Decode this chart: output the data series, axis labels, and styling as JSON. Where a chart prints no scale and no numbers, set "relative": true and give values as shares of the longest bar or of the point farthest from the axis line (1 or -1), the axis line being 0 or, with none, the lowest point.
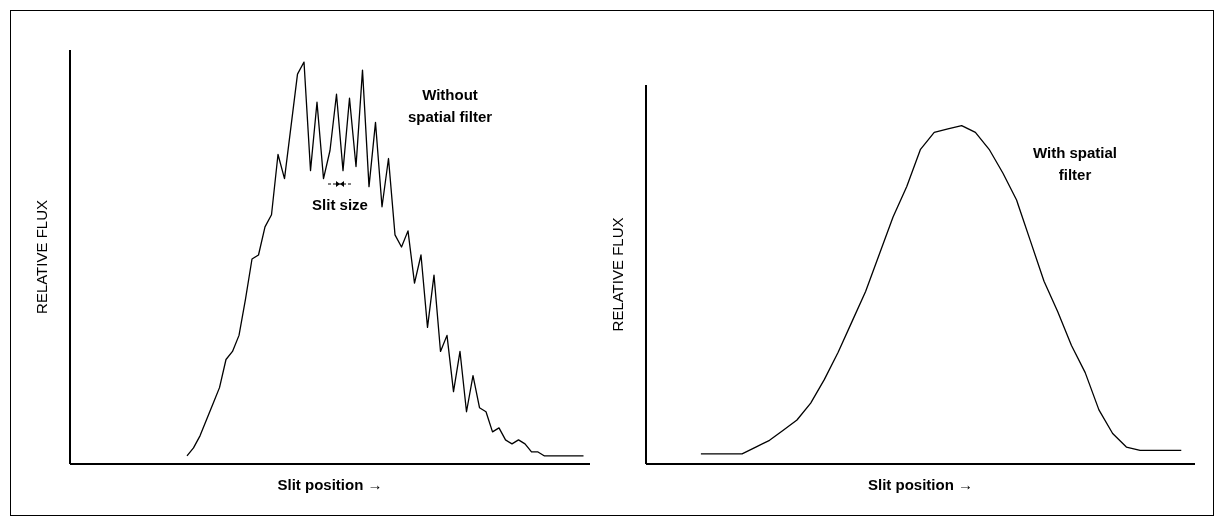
{
  "chart_data": [
    {
      "type": "line",
      "relative": true,
      "ylabel": "RELATIVE FLUX",
      "xlabel": "Slit position  →",
      "categories": [
        null,
        null,
        null,
        null,
        null,
        null,
        null,
        null,
        null,
        null,
        null,
        null,
        null,
        null,
        null,
        null,
        null,
        null,
        null,
        null,
        null,
        null,
        null,
        null,
        null,
        null,
        null,
        null,
        null,
        null,
        null,
        null,
        null,
        null,
        null,
        null,
        null,
        null,
        null,
        null,
        null,
        null,
        null,
        null,
        null,
        null,
        null,
        null,
        null,
        null,
        null,
        null,
        null,
        null,
        null,
        null,
        null,
        null,
        null,
        null,
        null,
        null,
        null,
        null,
        null,
        null,
        null,
        null,
        null,
        null,
        null,
        null,
        null,
        null,
        null,
        null,
        null,
        null,
        null,
        null,
        null
      ],
      "series": [
        {
          "color": "#000000",
          "values": [
            null,
            null,
            null,
            null,
            null,
            null,
            null,
            null,
            null,
            null,
            null,
            null,
            null,
            null,
            null,
            null,
            null,
            null,
            0.02,
            0.04,
            0.07,
            0.11,
            0.15,
            0.19,
            0.26,
            0.28,
            0.32,
            0.41,
            0.51,
            0.52,
            0.59,
            0.62,
            0.77,
            0.71,
            0.84,
            0.97,
            1.0,
            0.73,
            0.9,
            0.71,
            0.78,
            0.92,
            0.73,
            0.91,
            0.74,
            0.98,
            0.69,
            0.85,
            0.64,
            0.76,
            0.57,
            0.54,
            0.58,
            0.45,
            0.52,
            0.34,
            0.47,
            0.28,
            0.32,
            0.18,
            0.28,
            0.13,
            0.22,
            0.14,
            0.13,
            0.08,
            0.09,
            0.06,
            0.05,
            0.06,
            0.05,
            0.03,
            0.03,
            0.02,
            0.02,
            0.02,
            0.02,
            0.02,
            0.02,
            0.02,
            null
          ]
        }
      ],
      "annotations": [
        "Without spatial filter",
        "Slit size"
      ]
    },
    {
      "type": "line",
      "relative": true,
      "ylabel": "RELATIVE FLUX",
      "xlabel": "Slit position  →",
      "categories": [
        null,
        null,
        null,
        null,
        null,
        null,
        null,
        null,
        null,
        null,
        null,
        null,
        null,
        null,
        null,
        null,
        null,
        null,
        null,
        null,
        null,
        null,
        null,
        null,
        null,
        null,
        null,
        null,
        null,
        null,
        null,
        null,
        null,
        null,
        null,
        null,
        null,
        null,
        null,
        null,
        null
      ],
      "series": [
        {
          "color": "#000000",
          "values": [
            null,
            null,
            null,
            null,
            0.03,
            0.03,
            0.03,
            0.03,
            0.05,
            0.07,
            0.1,
            0.13,
            0.18,
            0.25,
            0.33,
            0.42,
            0.51,
            0.62,
            0.73,
            0.82,
            0.93,
            0.98,
            0.99,
            1.0,
            0.98,
            0.93,
            0.86,
            0.78,
            0.66,
            0.54,
            0.45,
            0.35,
            0.27,
            0.16,
            0.09,
            0.05,
            0.04,
            0.04,
            0.04,
            0.04,
            null
          ]
        }
      ],
      "annotations": [
        "With spatial filter"
      ]
    }
  ]
}
